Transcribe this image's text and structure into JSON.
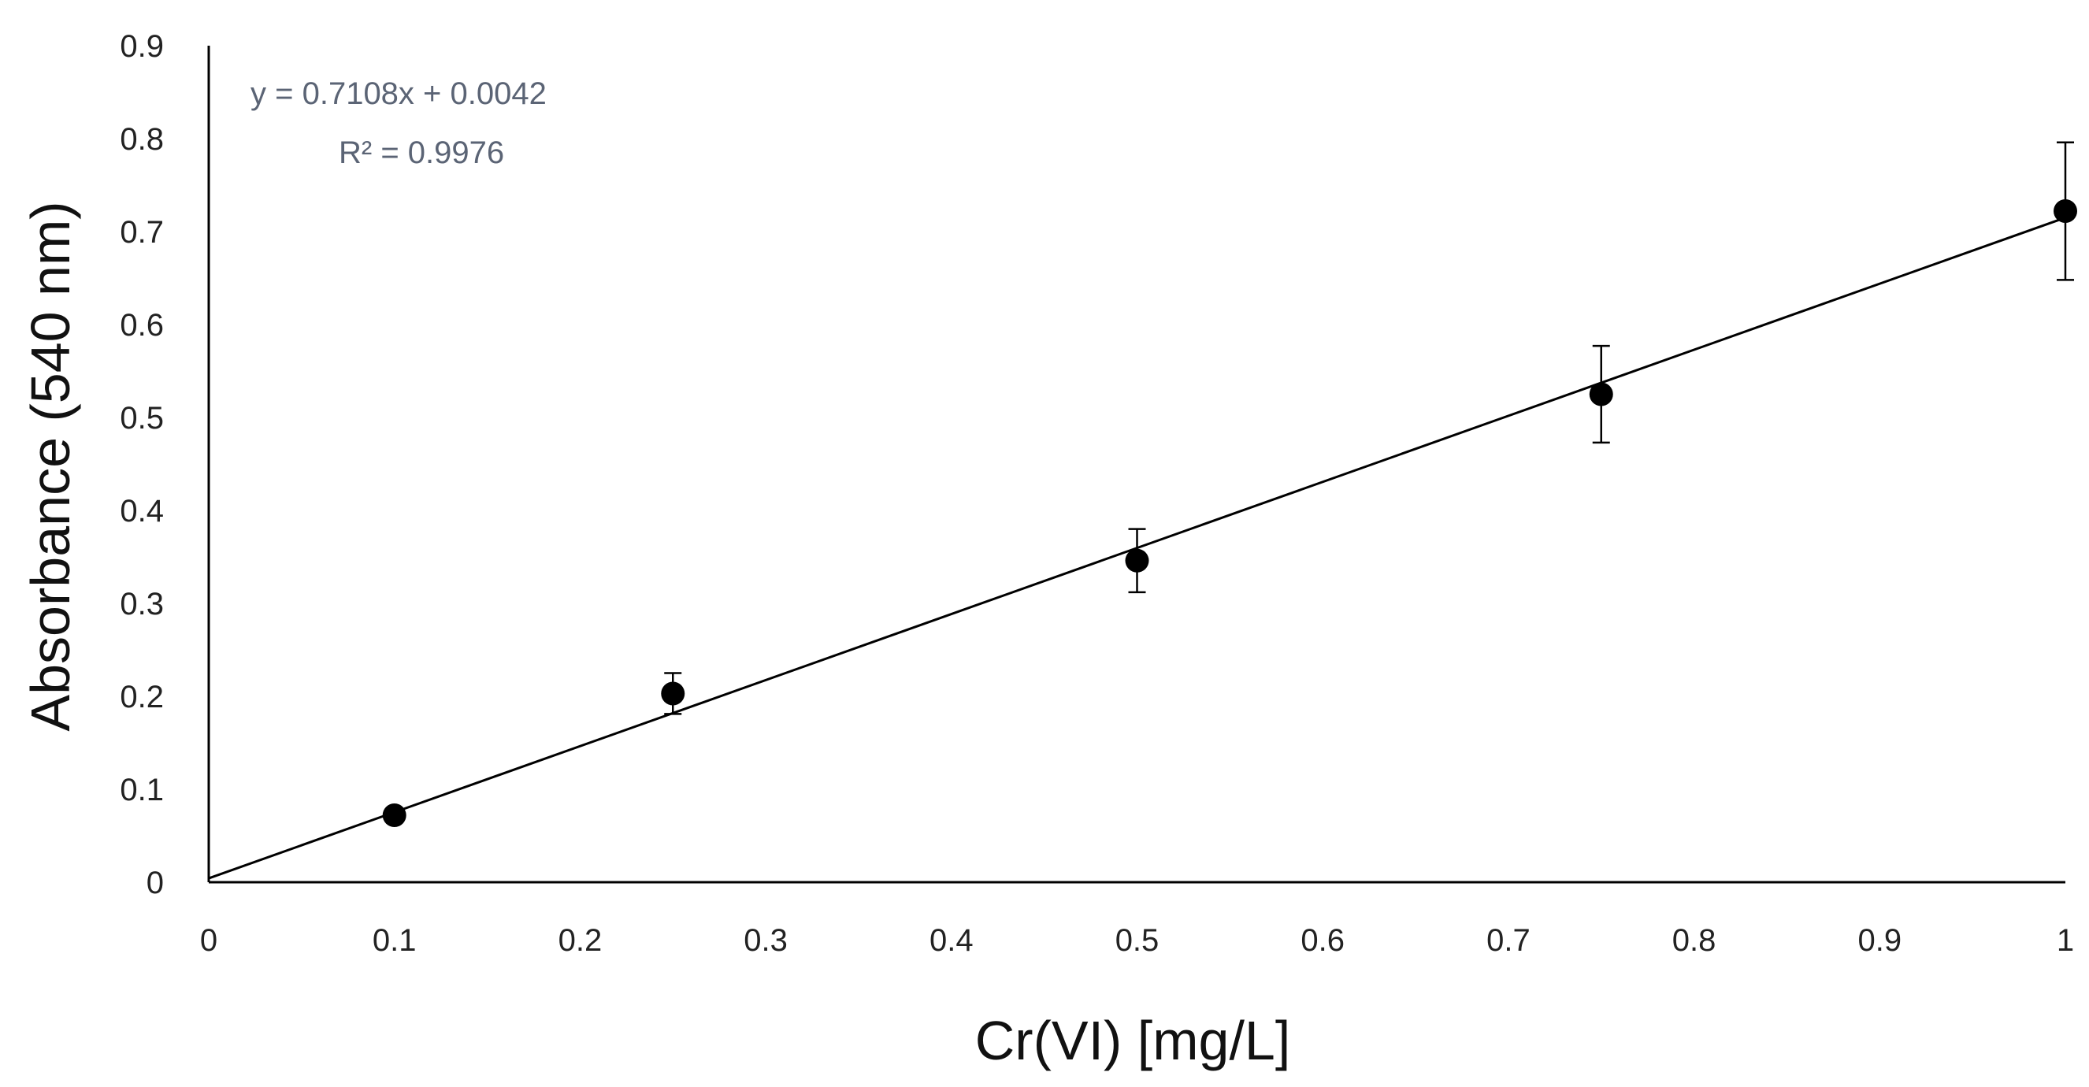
{
  "chart_data": {
    "type": "scatter",
    "title": "",
    "xlabel": "Cr(VI) [mg/L]",
    "ylabel": "Absorbance (540 nm)",
    "xlim": [
      0,
      1
    ],
    "ylim": [
      0,
      0.9
    ],
    "x_ticks": [
      "0",
      "0.1",
      "0.2",
      "0.3",
      "0.4",
      "0.5",
      "0.6",
      "0.7",
      "0.8",
      "0.9",
      "1"
    ],
    "x_tick_values": [
      0,
      0.1,
      0.2,
      0.3,
      0.4,
      0.5,
      0.6,
      0.7,
      0.8,
      0.9,
      1
    ],
    "y_ticks": [
      "0",
      "0.1",
      "0.2",
      "0.3",
      "0.4",
      "0.5",
      "0.6",
      "0.7",
      "0.8",
      "0.9"
    ],
    "y_tick_values": [
      0,
      0.1,
      0.2,
      0.3,
      0.4,
      0.5,
      0.6,
      0.7,
      0.8,
      0.9
    ],
    "grid": false,
    "series": [
      {
        "name": "Absorbance",
        "x": [
          0.1,
          0.25,
          0.5,
          0.75,
          1.0
        ],
        "y": [
          0.072,
          0.203,
          0.346,
          0.525,
          0.722
        ],
        "y_err": [
          0.005,
          0.022,
          0.034,
          0.052,
          0.074
        ],
        "color": "#000000"
      }
    ],
    "trendline": {
      "type": "linear",
      "slope": 0.7108,
      "intercept": 0.0042,
      "x_range": [
        0,
        1
      ],
      "color": "#000000"
    },
    "annotations": {
      "equation": "y = 0.7108x  + 0.0042",
      "r_squared": "R² = 0.9976",
      "color": "#5b6475"
    }
  }
}
